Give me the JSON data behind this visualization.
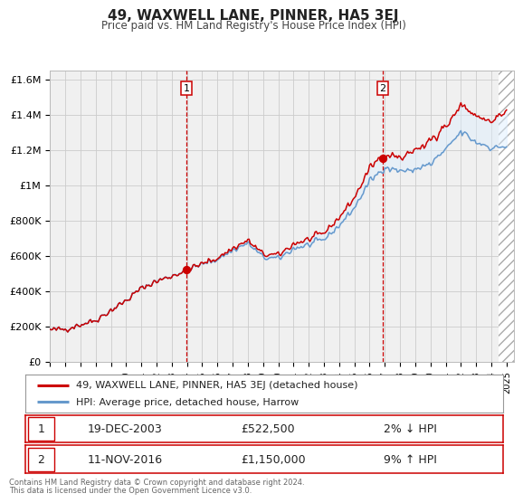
{
  "title": "49, WAXWELL LANE, PINNER, HA5 3EJ",
  "subtitle": "Price paid vs. HM Land Registry's House Price Index (HPI)",
  "ylim": [
    0,
    1650000
  ],
  "xlim_start": 1995.0,
  "xlim_end": 2025.5,
  "yticks": [
    0,
    200000,
    400000,
    600000,
    800000,
    1000000,
    1200000,
    1400000,
    1600000
  ],
  "ytick_labels": [
    "£0",
    "£200K",
    "£400K",
    "£600K",
    "£800K",
    "£1M",
    "£1.2M",
    "£1.4M",
    "£1.6M"
  ],
  "xticks": [
    1995,
    1996,
    1997,
    1998,
    1999,
    2000,
    2001,
    2002,
    2003,
    2004,
    2005,
    2006,
    2007,
    2008,
    2009,
    2010,
    2011,
    2012,
    2013,
    2014,
    2015,
    2016,
    2017,
    2018,
    2019,
    2020,
    2021,
    2022,
    2023,
    2024,
    2025
  ],
  "sale1_x": 2003.97,
  "sale1_y": 522500,
  "sale2_x": 2016.86,
  "sale2_y": 1150000,
  "marker_color": "#cc0000",
  "line1_color": "#cc0000",
  "line2_color": "#6699cc",
  "fill_color": "#ddeeff",
  "vline_color": "#cc0000",
  "grid_color": "#cccccc",
  "bg_color": "#ffffff",
  "plot_bg_color": "#f0f0f0",
  "hatch_color": "#cccccc",
  "legend1_label": "49, WAXWELL LANE, PINNER, HA5 3EJ (detached house)",
  "legend2_label": "HPI: Average price, detached house, Harrow",
  "annotation1_num": "1",
  "annotation1_date": "19-DEC-2003",
  "annotation1_price": "£522,500",
  "annotation1_hpi": "2% ↓ HPI",
  "annotation2_num": "2",
  "annotation2_date": "11-NOV-2016",
  "annotation2_price": "£1,150,000",
  "annotation2_hpi": "9% ↑ HPI",
  "footer1": "Contains HM Land Registry data © Crown copyright and database right 2024.",
  "footer2": "This data is licensed under the Open Government Licence v3.0."
}
